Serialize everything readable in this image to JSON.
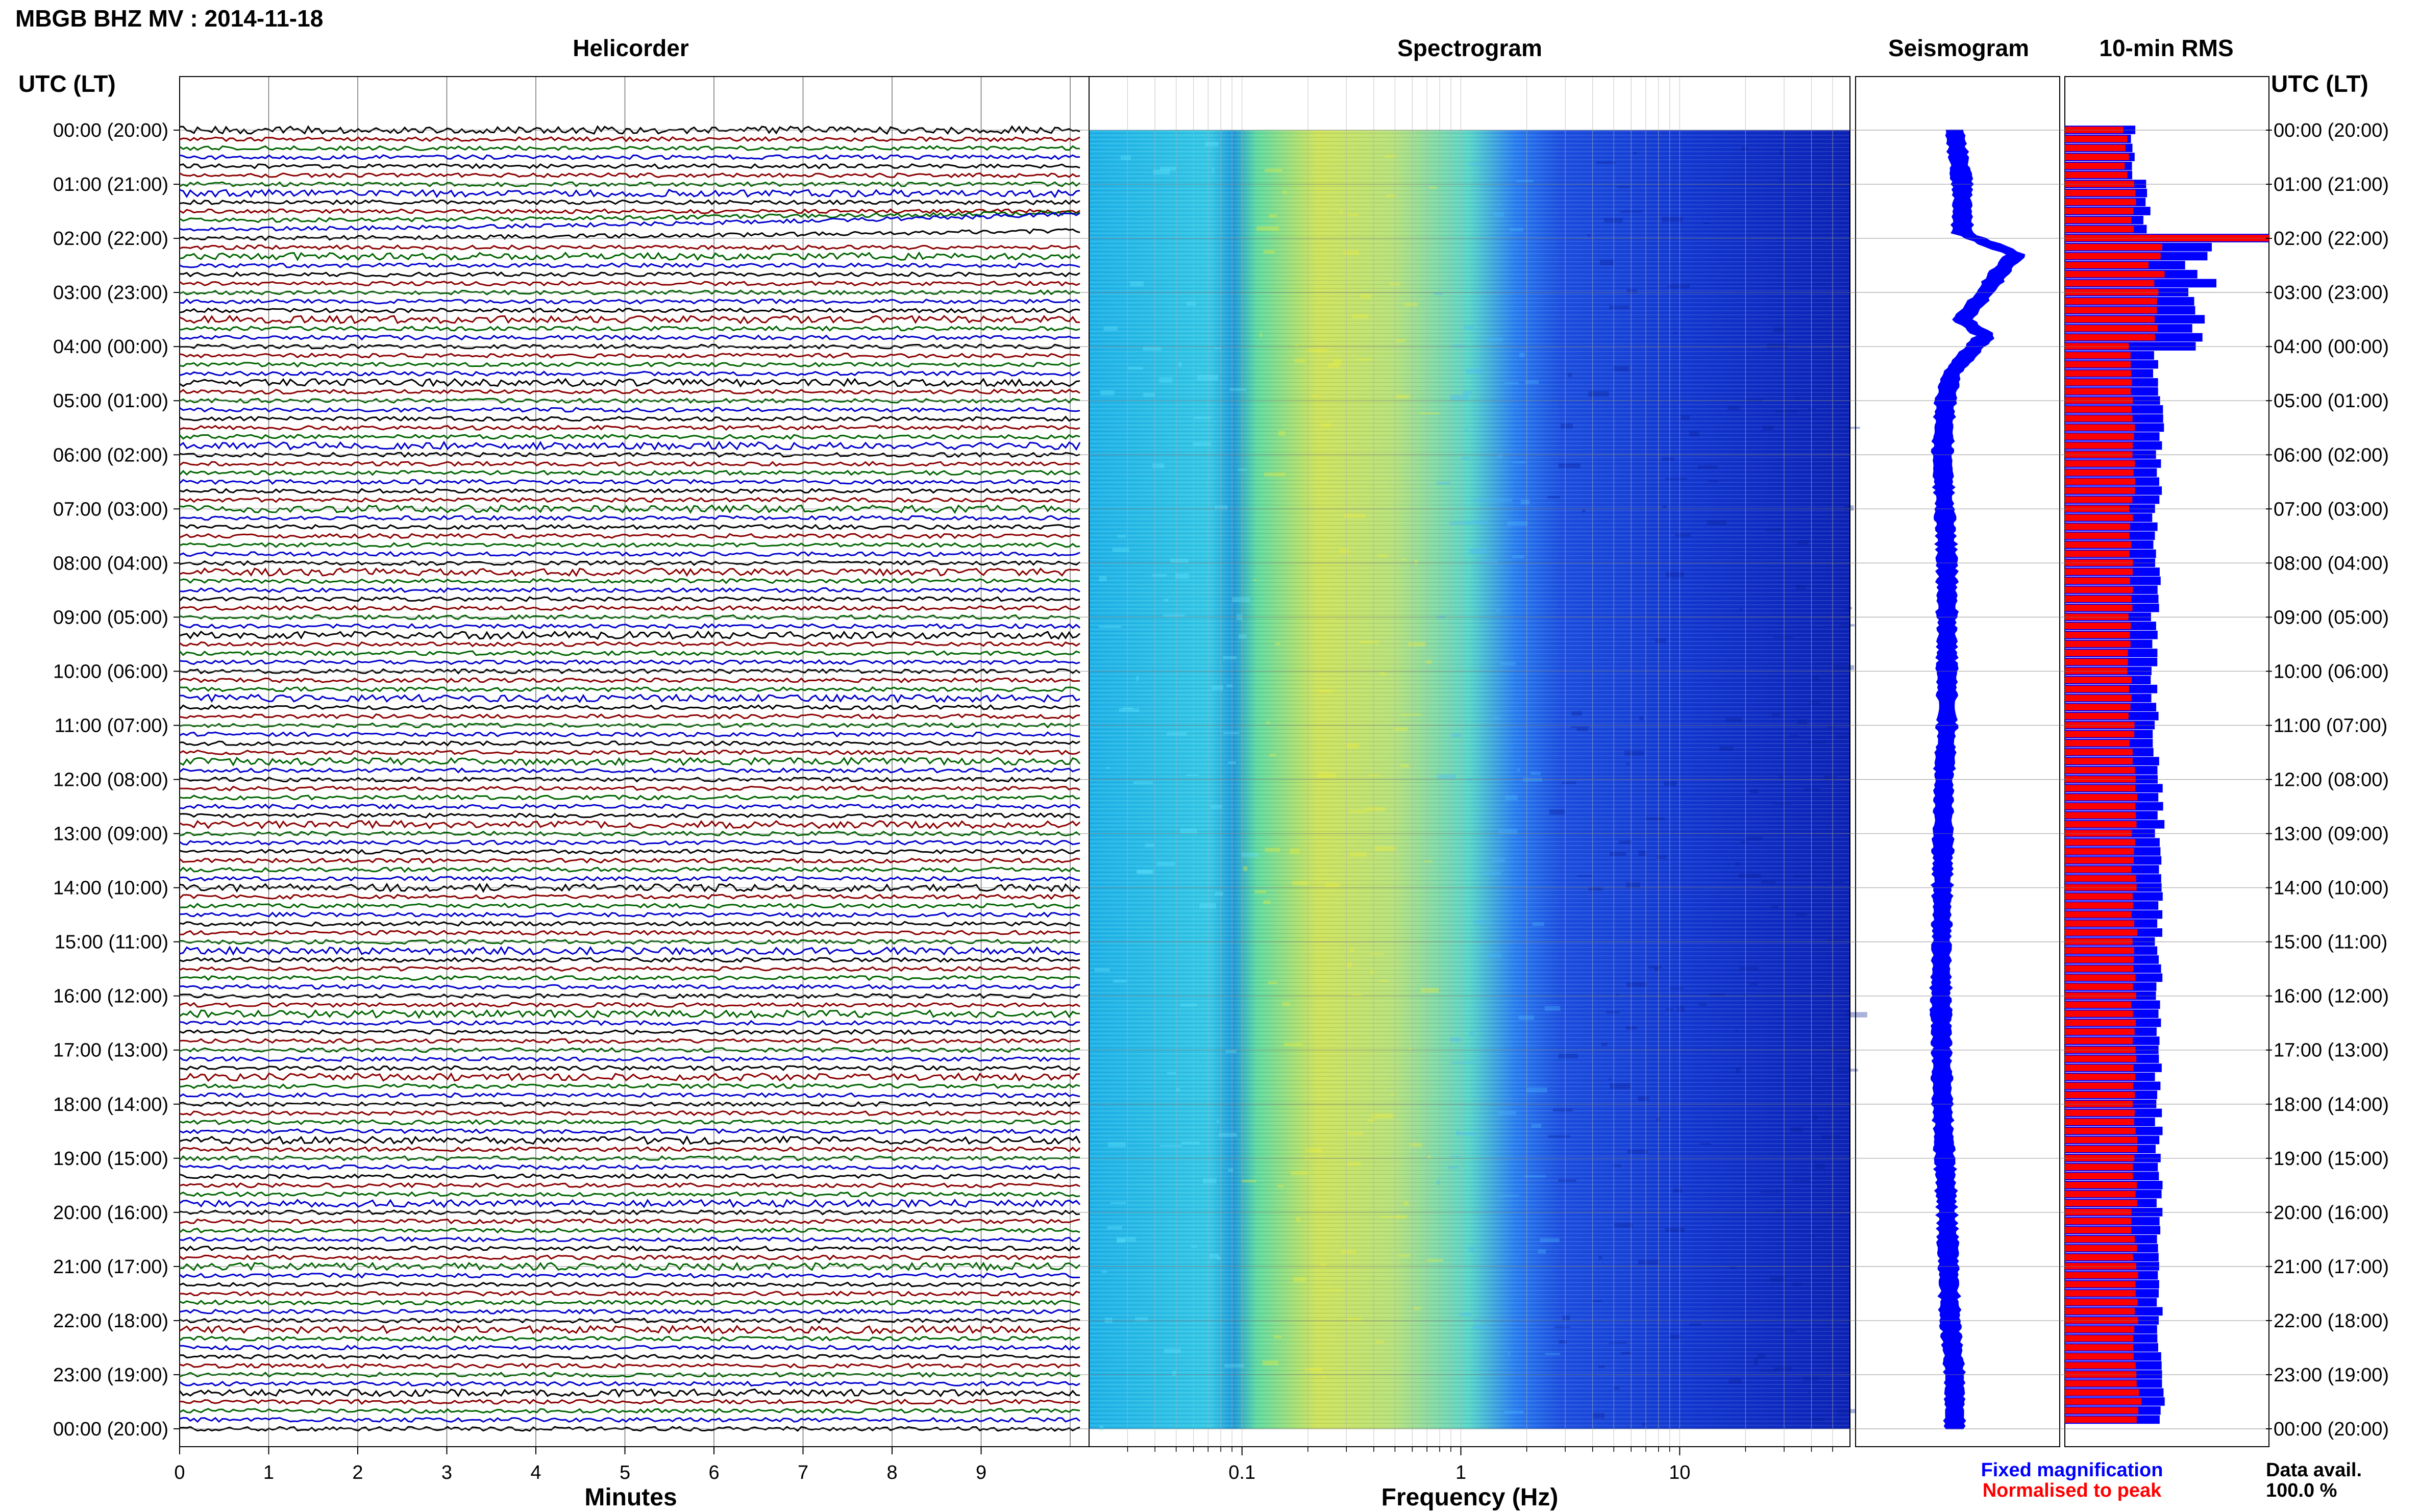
{
  "header": {
    "title": "MBGB BHZ MV : 2014-11-18"
  },
  "panels": {
    "helicorder": "Helicorder",
    "spectrogram": "Spectrogram",
    "seismogram": "Seismogram",
    "rms": "10-min RMS"
  },
  "axis_header_left": "UTC (LT)",
  "axis_header_right": "UTC (LT)",
  "time_labels": [
    "00:00 (20:00)",
    "01:00 (21:00)",
    "02:00 (22:00)",
    "03:00 (23:00)",
    "04:00 (00:00)",
    "05:00 (01:00)",
    "06:00 (02:00)",
    "07:00 (03:00)",
    "08:00 (04:00)",
    "09:00 (05:00)",
    "10:00 (06:00)",
    "11:00 (07:00)",
    "12:00 (08:00)",
    "13:00 (09:00)",
    "14:00 (10:00)",
    "15:00 (11:00)",
    "16:00 (12:00)",
    "17:00 (13:00)",
    "18:00 (14:00)",
    "19:00 (15:00)",
    "20:00 (16:00)",
    "21:00 (17:00)",
    "22:00 (18:00)",
    "23:00 (19:00)",
    "00:00 (20:00)"
  ],
  "x_axes": {
    "minutes_label": "Minutes",
    "minutes_ticks": [
      "0",
      "1",
      "2",
      "3",
      "4",
      "5",
      "6",
      "7",
      "8",
      "9"
    ],
    "frequency_label": "Frequency (Hz)",
    "frequency_ticks": [
      "0.1",
      "1",
      "10"
    ]
  },
  "legend": {
    "fixed": "Fixed magnification",
    "normalised": "Normalised to peak",
    "fixed_color": "#0000ff",
    "normalised_color": "#ff0000"
  },
  "data_avail": {
    "label": "Data avail.",
    "value": "100.0 %"
  },
  "colors": {
    "trace_cycle": [
      "#000000",
      "#8b0000",
      "#006400",
      "#0000cd"
    ],
    "spectrogram_stops": [
      "#00ffff",
      "#ffff00",
      "#00aaff",
      "#0000aa"
    ],
    "seismogram": "#0000ff",
    "rms_fixed": "#0000ff",
    "rms_normalised": "#ff0000"
  },
  "chart_data": [
    {
      "type": "line",
      "name": "Helicorder",
      "xlabel": "Minutes",
      "xlim": [
        0,
        10
      ],
      "rows": 144,
      "row_minutes": 10,
      "notes": "Continuous seismic traces, one row per 10 minutes; long-period drift near 01:50–02:00 UTC"
    },
    {
      "type": "heatmap",
      "name": "Spectrogram",
      "xlabel": "Frequency (Hz)",
      "xscale": "log",
      "xlim": [
        0.02,
        60
      ],
      "energy_peak_hz": [
        0.15,
        1.5
      ]
    },
    {
      "type": "line",
      "name": "Seismogram",
      "hours": [
        0,
        1,
        1.9,
        2.3,
        2.6,
        3.0,
        3.5,
        3.8,
        4.1,
        4.5,
        5,
        6,
        8,
        10,
        11,
        12,
        14,
        16,
        18,
        20,
        22,
        23,
        24
      ],
      "offset": [
        0,
        0.05,
        0.05,
        0.4,
        0.3,
        0.2,
        0.05,
        0.2,
        0.1,
        -0.02,
        -0.06,
        -0.08,
        -0.05,
        -0.05,
        -0.05,
        -0.07,
        -0.08,
        -0.09,
        -0.08,
        -0.05,
        -0.03,
        0.0,
        0.0
      ]
    },
    {
      "type": "bar",
      "name": "10-min RMS",
      "series": [
        {
          "name": "Fixed magnification",
          "values_by_hour": [
            0.33,
            0.4,
            1.0,
            0.62,
            0.44,
            0.48,
            0.46,
            0.44,
            0.45,
            0.44,
            0.44,
            0.45,
            0.47,
            0.46,
            0.46,
            0.46,
            0.46,
            0.46,
            0.46,
            0.46,
            0.46,
            0.47,
            0.47,
            0.48
          ]
        },
        {
          "name": "Normalised to peak",
          "values_by_hour": [
            0.3,
            0.34,
            1.0,
            0.45,
            0.32,
            0.34,
            0.33,
            0.32,
            0.33,
            0.32,
            0.32,
            0.33,
            0.34,
            0.34,
            0.34,
            0.34,
            0.34,
            0.34,
            0.34,
            0.34,
            0.34,
            0.35,
            0.35,
            0.36
          ]
        }
      ]
    }
  ]
}
